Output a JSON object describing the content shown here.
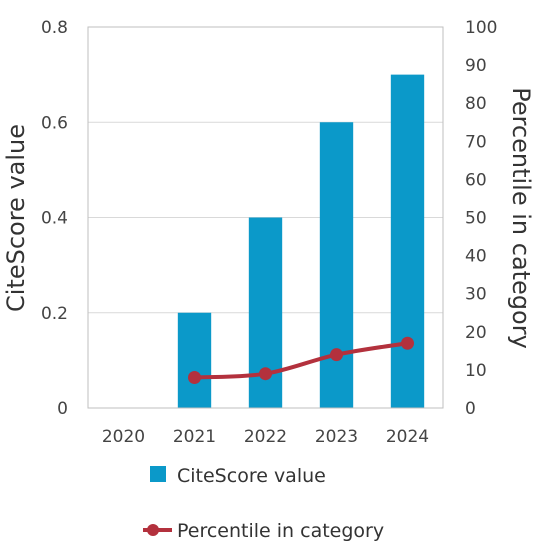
{
  "chart_data": {
    "type": "bar",
    "categories": [
      "2020",
      "2021",
      "2022",
      "2023",
      "2024"
    ],
    "series": [
      {
        "name": "CiteScore value",
        "type": "bar",
        "axis": "left",
        "color": "#0b99c9",
        "values": [
          0,
          0.2,
          0.4,
          0.6,
          0.7
        ]
      },
      {
        "name": "Percentile in category",
        "type": "line",
        "axis": "right",
        "color": "#b3313d",
        "values": [
          null,
          8,
          9,
          14,
          17
        ]
      }
    ],
    "ylabel": "CiteScore value",
    "ylabel_right": "Percentile in category",
    "ylim": [
      0,
      0.8
    ],
    "ylim_right": [
      0,
      100
    ],
    "yticks": [
      "0",
      "0.2",
      "0.4",
      "0.6",
      "0.8"
    ],
    "yticks_right": [
      "0",
      "10",
      "20",
      "30",
      "40",
      "50",
      "60",
      "70",
      "80",
      "90",
      "100"
    ],
    "grid": "horizontal",
    "legend_position": "bottom"
  }
}
